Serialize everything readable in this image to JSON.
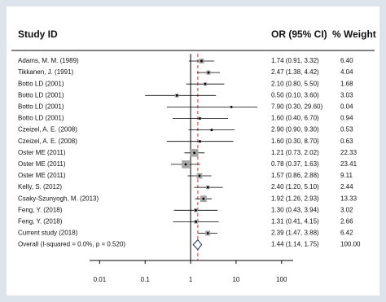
{
  "chart_data": {
    "type": "forest",
    "headers": [
      "Study ID",
      "OR (95% CI)",
      "% Weight"
    ],
    "xscale": "log",
    "xlim": [
      0.006,
      180
    ],
    "xticks": [
      0.01,
      0.1,
      1,
      10,
      100
    ],
    "null_line": 1,
    "color": "#000000",
    "box_color": "#a6a6a6",
    "pooled_line_color": "#c0392b",
    "diamond_color": "#1f2a6b",
    "studies": {
      "names": [
        "Adams, M. M. (1989)",
        "Tikkanen, J. (1991)",
        "Botto LD (2001)",
        "Botto LD (2001)",
        "Botto LD (2001)",
        "Botto LD (2001)",
        "Czeizel, A. E. (2008)",
        "Czeizel, A. E. (2008)",
        "Oster ME (2011)",
        "Oster ME (2011)",
        "Oster ME (2011)",
        "Kelly, S. (2012)",
        "Csaky-Szunyogh, M. (2013)",
        "Feng, Y. (2018)",
        "Feng, Y. (2018)",
        "Current study (2018)"
      ],
      "values": [
        1.74,
        2.47,
        2.1,
        0.5,
        7.9,
        1.6,
        2.9,
        1.6,
        1.21,
        0.78,
        1.57,
        2.4,
        1.92,
        1.3,
        1.31,
        2.39
      ],
      "lower": [
        0.91,
        1.38,
        0.8,
        0.1,
        0.3,
        0.4,
        0.9,
        0.3,
        0.73,
        0.37,
        0.86,
        1.2,
        1.26,
        0.43,
        0.41,
        1.47
      ],
      "upper": [
        3.32,
        4.42,
        5.5,
        3.6,
        29.6,
        6.7,
        9.3,
        8.7,
        2.02,
        1.63,
        2.88,
        5.1,
        2.93,
        3.94,
        4.15,
        3.88
      ],
      "value_labels": [
        "1.74 (0.91, 3.32)",
        "2.47 (1.38, 4.42)",
        "2.10 (0.80, 5.50)",
        "0.50 (0.10, 3.60)",
        "7.90 (0.30, 29.60)",
        "1.60 (0.40, 6.70)",
        "2.90 (0.90, 9.30)",
        "1.60 (0.30, 8.70)",
        "1.21 (0.73, 2.02)",
        "0.78 (0.37, 1.63)",
        "1.57 (0.86, 2.88)",
        "2.40 (1.20, 5.10)",
        "1.92 (1.26, 2.93)",
        "1.30 (0.43, 3.94)",
        "1.31 (0.41, 4.15)",
        "2.39 (1.47, 3.88)"
      ],
      "weights": [
        6.4,
        4.04,
        1.68,
        3.03,
        0.04,
        0.94,
        0.53,
        0.63,
        22.33,
        23.41,
        9.11,
        2.44,
        13.33,
        3.02,
        2.66,
        6.42
      ],
      "weight_labels": [
        "6.40",
        "4.04",
        "1.68",
        "3.03",
        "0.04",
        "0.94",
        "0.53",
        "0.63",
        "22.33",
        "23.41",
        "9.11",
        "2.44",
        "13.33",
        "3.02",
        "2.66",
        "6.42"
      ]
    },
    "overall": {
      "name": "Overall  (I-squared = 0.0%, p = 0.520)",
      "value": 1.44,
      "lower": 1.14,
      "upper": 1.75,
      "value_label": "1.44 (1.14, 1.75)",
      "weight": 100,
      "weight_label": "100.00"
    }
  }
}
